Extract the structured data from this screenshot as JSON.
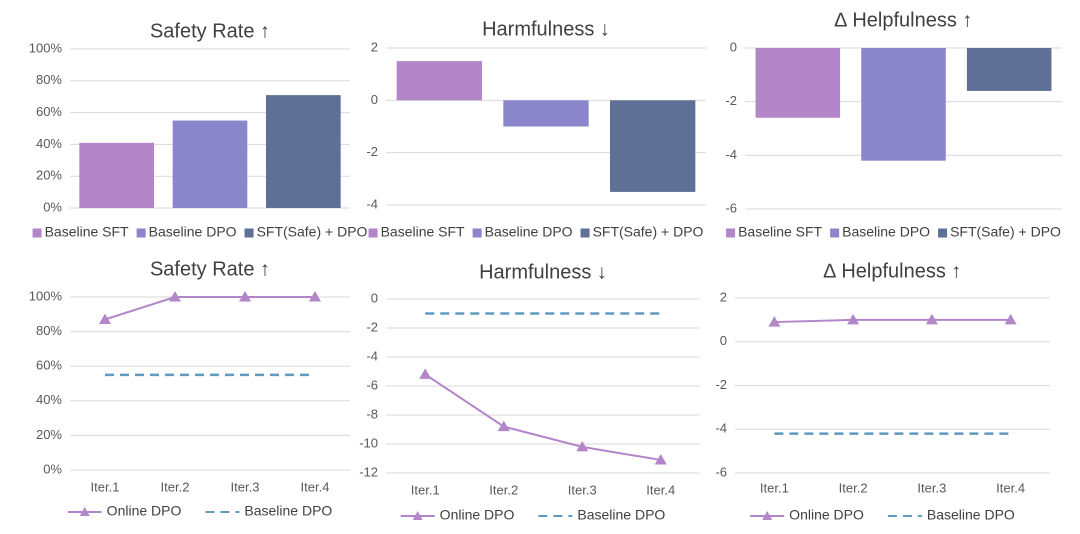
{
  "chart_data": [
    {
      "type": "bar",
      "title": "Safety Rate ↑",
      "categories": [
        null
      ],
      "series": [
        {
          "name": "Baseline SFT",
          "color": "#b286c8",
          "values": [
            41
          ]
        },
        {
          "name": "Baseline DPO",
          "color": "#8b85cb",
          "values": [
            55
          ]
        },
        {
          "name": "SFT(Safe) + DPO",
          "color": "#5e7096",
          "values": [
            71
          ]
        }
      ],
      "ylim": [
        0,
        100
      ],
      "yticks": [
        {
          "value": 0,
          "label": "0%"
        },
        {
          "value": 20,
          "label": "20%"
        },
        {
          "value": 40,
          "label": "40%"
        },
        {
          "value": 60,
          "label": "60%"
        },
        {
          "value": 80,
          "label": "80%"
        },
        {
          "value": 100,
          "label": "100%"
        }
      ],
      "grid": true,
      "legend": "bottom"
    },
    {
      "type": "bar",
      "title": "Harmfulness ↓",
      "categories": [
        null
      ],
      "series": [
        {
          "name": "Baseline SFT",
          "color": "#b286c8",
          "values": [
            1.5
          ]
        },
        {
          "name": "Baseline DPO",
          "color": "#8b85cb",
          "values": [
            -1.0
          ]
        },
        {
          "name": "SFT(Safe) + DPO",
          "color": "#5e7096",
          "values": [
            -3.5
          ]
        }
      ],
      "ylim": [
        -4,
        2
      ],
      "yticks": [
        -4,
        -2,
        0,
        2
      ],
      "grid": true,
      "legend": "bottom"
    },
    {
      "type": "bar",
      "title": "∆ Helpfulness ↑",
      "categories": [
        null
      ],
      "series": [
        {
          "name": "Baseline SFT",
          "color": "#b286c8",
          "values": [
            -2.6
          ]
        },
        {
          "name": "Baseline DPO",
          "color": "#8b85cb",
          "values": [
            -4.2
          ]
        },
        {
          "name": "SFT(Safe) + DPO",
          "color": "#5e7096",
          "values": [
            -1.6
          ]
        }
      ],
      "ylim": [
        -6,
        0
      ],
      "yticks": [
        -6,
        -4,
        -2,
        0
      ],
      "grid": true,
      "legend": "bottom"
    },
    {
      "type": "line",
      "title": "Safety Rate ↑",
      "categories": [
        "Iter.1",
        "Iter.2",
        "Iter.3",
        "Iter.4"
      ],
      "series": [
        {
          "name": "Online DPO",
          "color": "#b286c8",
          "marker": "triangle",
          "dash": false,
          "values": [
            87,
            100,
            100,
            100
          ]
        },
        {
          "name": "Baseline DPO",
          "color": "#5f9ac0",
          "marker": "none",
          "dash": true,
          "values": [
            55,
            55,
            55,
            55
          ]
        }
      ],
      "ylim": [
        0,
        100
      ],
      "yticks": [
        {
          "value": 0,
          "label": "0%"
        },
        {
          "value": 20,
          "label": "20%"
        },
        {
          "value": 40,
          "label": "40%"
        },
        {
          "value": 60,
          "label": "60%"
        },
        {
          "value": 80,
          "label": "80%"
        },
        {
          "value": 100,
          "label": "100%"
        }
      ],
      "grid": true,
      "legend": "bottom"
    },
    {
      "type": "line",
      "title": "Harmfulness ↓",
      "categories": [
        "Iter.1",
        "Iter.2",
        "Iter.3",
        "Iter.4"
      ],
      "series": [
        {
          "name": "Online DPO",
          "color": "#b286c8",
          "marker": "triangle",
          "dash": false,
          "values": [
            -5.2,
            -8.8,
            -10.2,
            -11.1
          ]
        },
        {
          "name": "Baseline DPO",
          "color": "#5f9ac0",
          "marker": "none",
          "dash": true,
          "values": [
            -1.0,
            -1.0,
            -1.0,
            -1.0
          ]
        }
      ],
      "ylim": [
        -12,
        0
      ],
      "yticks": [
        -12,
        -10,
        -8,
        -6,
        -4,
        -2,
        0
      ],
      "grid": true,
      "legend": "bottom"
    },
    {
      "type": "line",
      "title": "∆ Helpfulness ↑",
      "categories": [
        "Iter.1",
        "Iter.2",
        "Iter.3",
        "Iter.4"
      ],
      "series": [
        {
          "name": "Online DPO",
          "color": "#b286c8",
          "marker": "triangle",
          "dash": false,
          "values": [
            0.9,
            1.0,
            1.0,
            1.0
          ]
        },
        {
          "name": "Baseline DPO",
          "color": "#5f9ac0",
          "marker": "none",
          "dash": true,
          "values": [
            -4.2,
            -4.2,
            -4.2,
            -4.2
          ]
        }
      ],
      "ylim": [
        -6,
        2
      ],
      "yticks": [
        -6,
        -4,
        -2,
        0,
        2
      ],
      "grid": true,
      "legend": "bottom"
    }
  ]
}
